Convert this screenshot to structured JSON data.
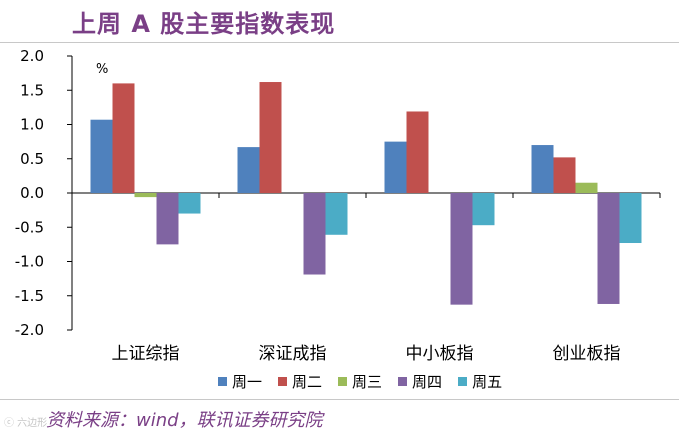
{
  "title": "上周 A 股主要指数表现",
  "source": "资料来源：wind，联讯证券研究院",
  "watermark": "ⓒ 六边形",
  "chart_data": {
    "type": "bar",
    "title": "上周 A 股主要指数表现",
    "ylabel": "%",
    "xlabel": "",
    "ylim": [
      -2.0,
      2.0
    ],
    "yticks": [
      2.0,
      1.5,
      1.0,
      0.5,
      0.0,
      -0.5,
      -1.0,
      -1.5,
      -2.0
    ],
    "ytick_labels": [
      "2.0",
      "1.5",
      "1.0",
      "0.5",
      "0.0",
      "-0.5",
      "-1.0",
      "-1.5",
      "-2.0"
    ],
    "categories": [
      "上证综指",
      "深证成指",
      "中小板指",
      "创业板指"
    ],
    "legend_position": "bottom",
    "grid": false,
    "series": [
      {
        "name": "周一",
        "color": "#4f81bd",
        "values": [
          1.07,
          0.67,
          0.75,
          0.7
        ]
      },
      {
        "name": "周二",
        "color": "#c0504d",
        "values": [
          1.6,
          1.62,
          1.19,
          0.52
        ]
      },
      {
        "name": "周三",
        "color": "#9bbb59",
        "values": [
          -0.06,
          0.0,
          0.0,
          0.15
        ]
      },
      {
        "name": "周四",
        "color": "#8064a2",
        "values": [
          -0.75,
          -1.19,
          -1.63,
          -1.62
        ]
      },
      {
        "name": "周五",
        "color": "#4bacc6",
        "values": [
          -0.3,
          -0.61,
          -0.47,
          -0.73
        ]
      }
    ]
  }
}
